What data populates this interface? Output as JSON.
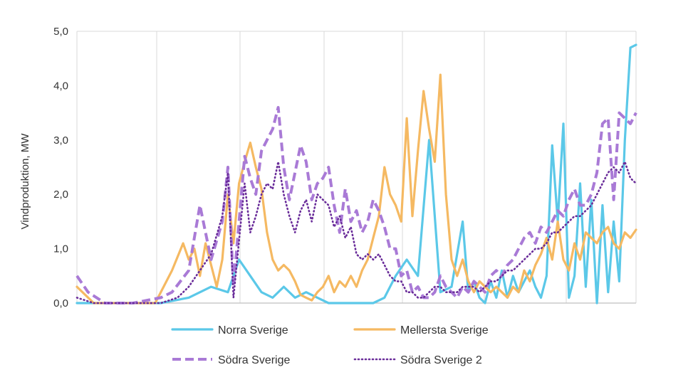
{
  "chart_data": {
    "type": "line",
    "title": "",
    "xlabel": "",
    "ylabel": "Vindproduktion, MW",
    "ylim": [
      0,
      5
    ],
    "yticks": [
      "0,0",
      "1,0",
      "2,0",
      "3,0",
      "4,0",
      "5,0"
    ],
    "xlim": [
      0,
      100
    ],
    "grid": "vertical",
    "legend": "bottom",
    "series": [
      {
        "name": "Norra Sverige",
        "color": "#5bc8e8",
        "style": "solid",
        "x": [
          0,
          3,
          6,
          10,
          15,
          20,
          24,
          27,
          29,
          31,
          33,
          35,
          37,
          39,
          41,
          43,
          45,
          47,
          49,
          51,
          53,
          55,
          57,
          59,
          61,
          63,
          65,
          67,
          69,
          70,
          71,
          72,
          73,
          74,
          75,
          76,
          77,
          78,
          79,
          80,
          81,
          82,
          83,
          84,
          85,
          86,
          87,
          88,
          89,
          90,
          91,
          92,
          93,
          94,
          95,
          96,
          97,
          98,
          99,
          100
        ],
        "y": [
          0,
          0,
          0,
          0,
          0,
          0.1,
          0.3,
          0.2,
          0.8,
          0.5,
          0.2,
          0.1,
          0.3,
          0.1,
          0.2,
          0.1,
          0,
          0,
          0,
          0,
          0,
          0.1,
          0.5,
          0.8,
          0.5,
          3.0,
          0.2,
          0.3,
          1.5,
          0.2,
          0.4,
          0.1,
          0,
          0.4,
          0.1,
          0.6,
          0.1,
          0.5,
          0.2,
          0.4,
          0.6,
          0.3,
          0.1,
          0.5,
          2.9,
          1.5,
          3.3,
          0.1,
          0.5,
          2.2,
          0.3,
          1.9,
          0,
          1.8,
          0.2,
          1.5,
          0.4,
          3.0,
          4.7,
          4.75
        ]
      },
      {
        "name": "Mellersta Sverige",
        "color": "#f5b962",
        "style": "solid",
        "x": [
          0,
          3,
          6,
          10,
          14,
          17,
          19,
          20,
          21,
          22,
          23,
          24,
          25,
          26,
          27,
          28,
          29,
          30,
          31,
          32,
          33,
          34,
          35,
          36,
          37,
          38,
          39,
          40,
          41,
          42,
          43,
          44,
          45,
          46,
          47,
          48,
          49,
          50,
          51,
          52,
          53,
          54,
          55,
          56,
          57,
          58,
          59,
          60,
          61,
          62,
          63,
          64,
          65,
          66,
          67,
          68,
          69,
          70,
          71,
          72,
          73,
          74,
          75,
          76,
          77,
          78,
          79,
          80,
          81,
          82,
          83,
          84,
          85,
          86,
          87,
          88,
          89,
          90,
          91,
          92,
          93,
          94,
          95,
          96,
          97,
          98,
          99,
          100
        ],
        "y": [
          0.3,
          0,
          0,
          0,
          0,
          0.6,
          1.1,
          0.8,
          1.0,
          0.5,
          1.1,
          0.7,
          0.3,
          0.8,
          2.0,
          1.1,
          2.2,
          2.6,
          2.95,
          2.5,
          2.1,
          1.3,
          0.8,
          0.6,
          0.7,
          0.6,
          0.4,
          0.15,
          0.1,
          0.05,
          0.2,
          0.3,
          0.5,
          0.2,
          0.4,
          0.3,
          0.5,
          0.3,
          0.6,
          0.8,
          1.2,
          1.6,
          2.5,
          2.0,
          1.8,
          1.5,
          3.4,
          1.6,
          2.8,
          3.9,
          3.2,
          2.6,
          4.2,
          2.0,
          0.8,
          0.5,
          0.8,
          0.4,
          0.2,
          0.4,
          0.3,
          0.2,
          0.3,
          0.2,
          0.1,
          0.3,
          0.2,
          0.6,
          0.4,
          0.7,
          0.9,
          1.2,
          0.8,
          1.5,
          0.8,
          0.6,
          1.1,
          0.8,
          1.3,
          1.2,
          1.1,
          1.3,
          1.4,
          1.1,
          1.0,
          1.3,
          1.2,
          1.35
        ]
      },
      {
        "name": "Södra Sverige",
        "color": "#a97ad6",
        "style": "dashed",
        "x": [
          0,
          2,
          5,
          10,
          15,
          17,
          20,
          22,
          24,
          26,
          27,
          28,
          30,
          31,
          32,
          33,
          34,
          35,
          36,
          37,
          38,
          39,
          40,
          41,
          42,
          43,
          44,
          45,
          46,
          47,
          48,
          49,
          50,
          51,
          52,
          53,
          54,
          55,
          56,
          57,
          58,
          59,
          60,
          61,
          62,
          63,
          64,
          65,
          66,
          67,
          68,
          69,
          70,
          71,
          72,
          73,
          74,
          75,
          76,
          77,
          78,
          79,
          80,
          81,
          82,
          83,
          84,
          85,
          86,
          87,
          88,
          89,
          90,
          91,
          92,
          93,
          94,
          95,
          96,
          97,
          98,
          99,
          100
        ],
        "y": [
          0.5,
          0.2,
          0,
          0,
          0.1,
          0.2,
          0.6,
          1.8,
          0.8,
          1.5,
          2.5,
          0.3,
          2.7,
          2.3,
          2.0,
          2.8,
          3.0,
          3.2,
          3.6,
          2.5,
          1.9,
          2.4,
          2.9,
          2.6,
          1.9,
          2.2,
          2.3,
          2.5,
          1.8,
          1.3,
          2.1,
          1.5,
          1.7,
          1.3,
          1.5,
          1.9,
          1.7,
          1.4,
          1.0,
          1.0,
          0.5,
          0.6,
          0.2,
          0.3,
          0.1,
          0.1,
          0.2,
          0.5,
          0.3,
          0.2,
          0.1,
          0.3,
          0.2,
          0.4,
          0.3,
          0.2,
          0.5,
          0.6,
          0.5,
          0.7,
          0.8,
          1.0,
          1.2,
          1.3,
          1.1,
          1.4,
          1.3,
          1.5,
          1.7,
          1.6,
          1.9,
          2.1,
          1.8,
          1.8,
          2.0,
          2.4,
          3.3,
          3.4,
          1.9,
          3.5,
          3.4,
          3.3,
          3.5
        ]
      },
      {
        "name": "Södra Sverige 2",
        "color": "#6a2d9a",
        "style": "dotted",
        "x": [
          0,
          3,
          6,
          10,
          15,
          18,
          20,
          22,
          24,
          26,
          27,
          28,
          30,
          31,
          32,
          33,
          34,
          35,
          36,
          37,
          38,
          39,
          40,
          41,
          42,
          43,
          44,
          45,
          46,
          47,
          48,
          49,
          50,
          51,
          52,
          53,
          54,
          55,
          56,
          57,
          58,
          59,
          60,
          61,
          62,
          63,
          64,
          65,
          66,
          67,
          68,
          69,
          70,
          71,
          72,
          73,
          74,
          75,
          76,
          77,
          78,
          79,
          80,
          81,
          82,
          83,
          84,
          85,
          86,
          87,
          88,
          89,
          90,
          91,
          92,
          93,
          94,
          95,
          96,
          97,
          98,
          99,
          100
        ],
        "y": [
          0.1,
          0,
          0,
          0,
          0,
          0.1,
          0.3,
          0.6,
          0.9,
          1.6,
          2.4,
          0.1,
          2.2,
          1.3,
          1.6,
          2.0,
          2.2,
          2.1,
          2.6,
          2.0,
          1.6,
          1.3,
          1.7,
          1.9,
          1.5,
          2.0,
          1.9,
          1.8,
          1.4,
          1.6,
          1.2,
          1.4,
          0.9,
          0.8,
          0.9,
          0.8,
          0.9,
          0.7,
          0.5,
          0.4,
          0.4,
          0.2,
          0.2,
          0.1,
          0.1,
          0.2,
          0.3,
          0.3,
          0.2,
          0.2,
          0.2,
          0.3,
          0.3,
          0.3,
          0.2,
          0.3,
          0.4,
          0.4,
          0.5,
          0.6,
          0.6,
          0.7,
          0.8,
          0.9,
          1.0,
          1.0,
          1.1,
          1.3,
          1.3,
          1.4,
          1.5,
          1.6,
          1.6,
          1.7,
          1.8,
          2.0,
          2.2,
          2.4,
          2.5,
          2.4,
          2.6,
          2.3,
          2.2
        ]
      }
    ]
  }
}
